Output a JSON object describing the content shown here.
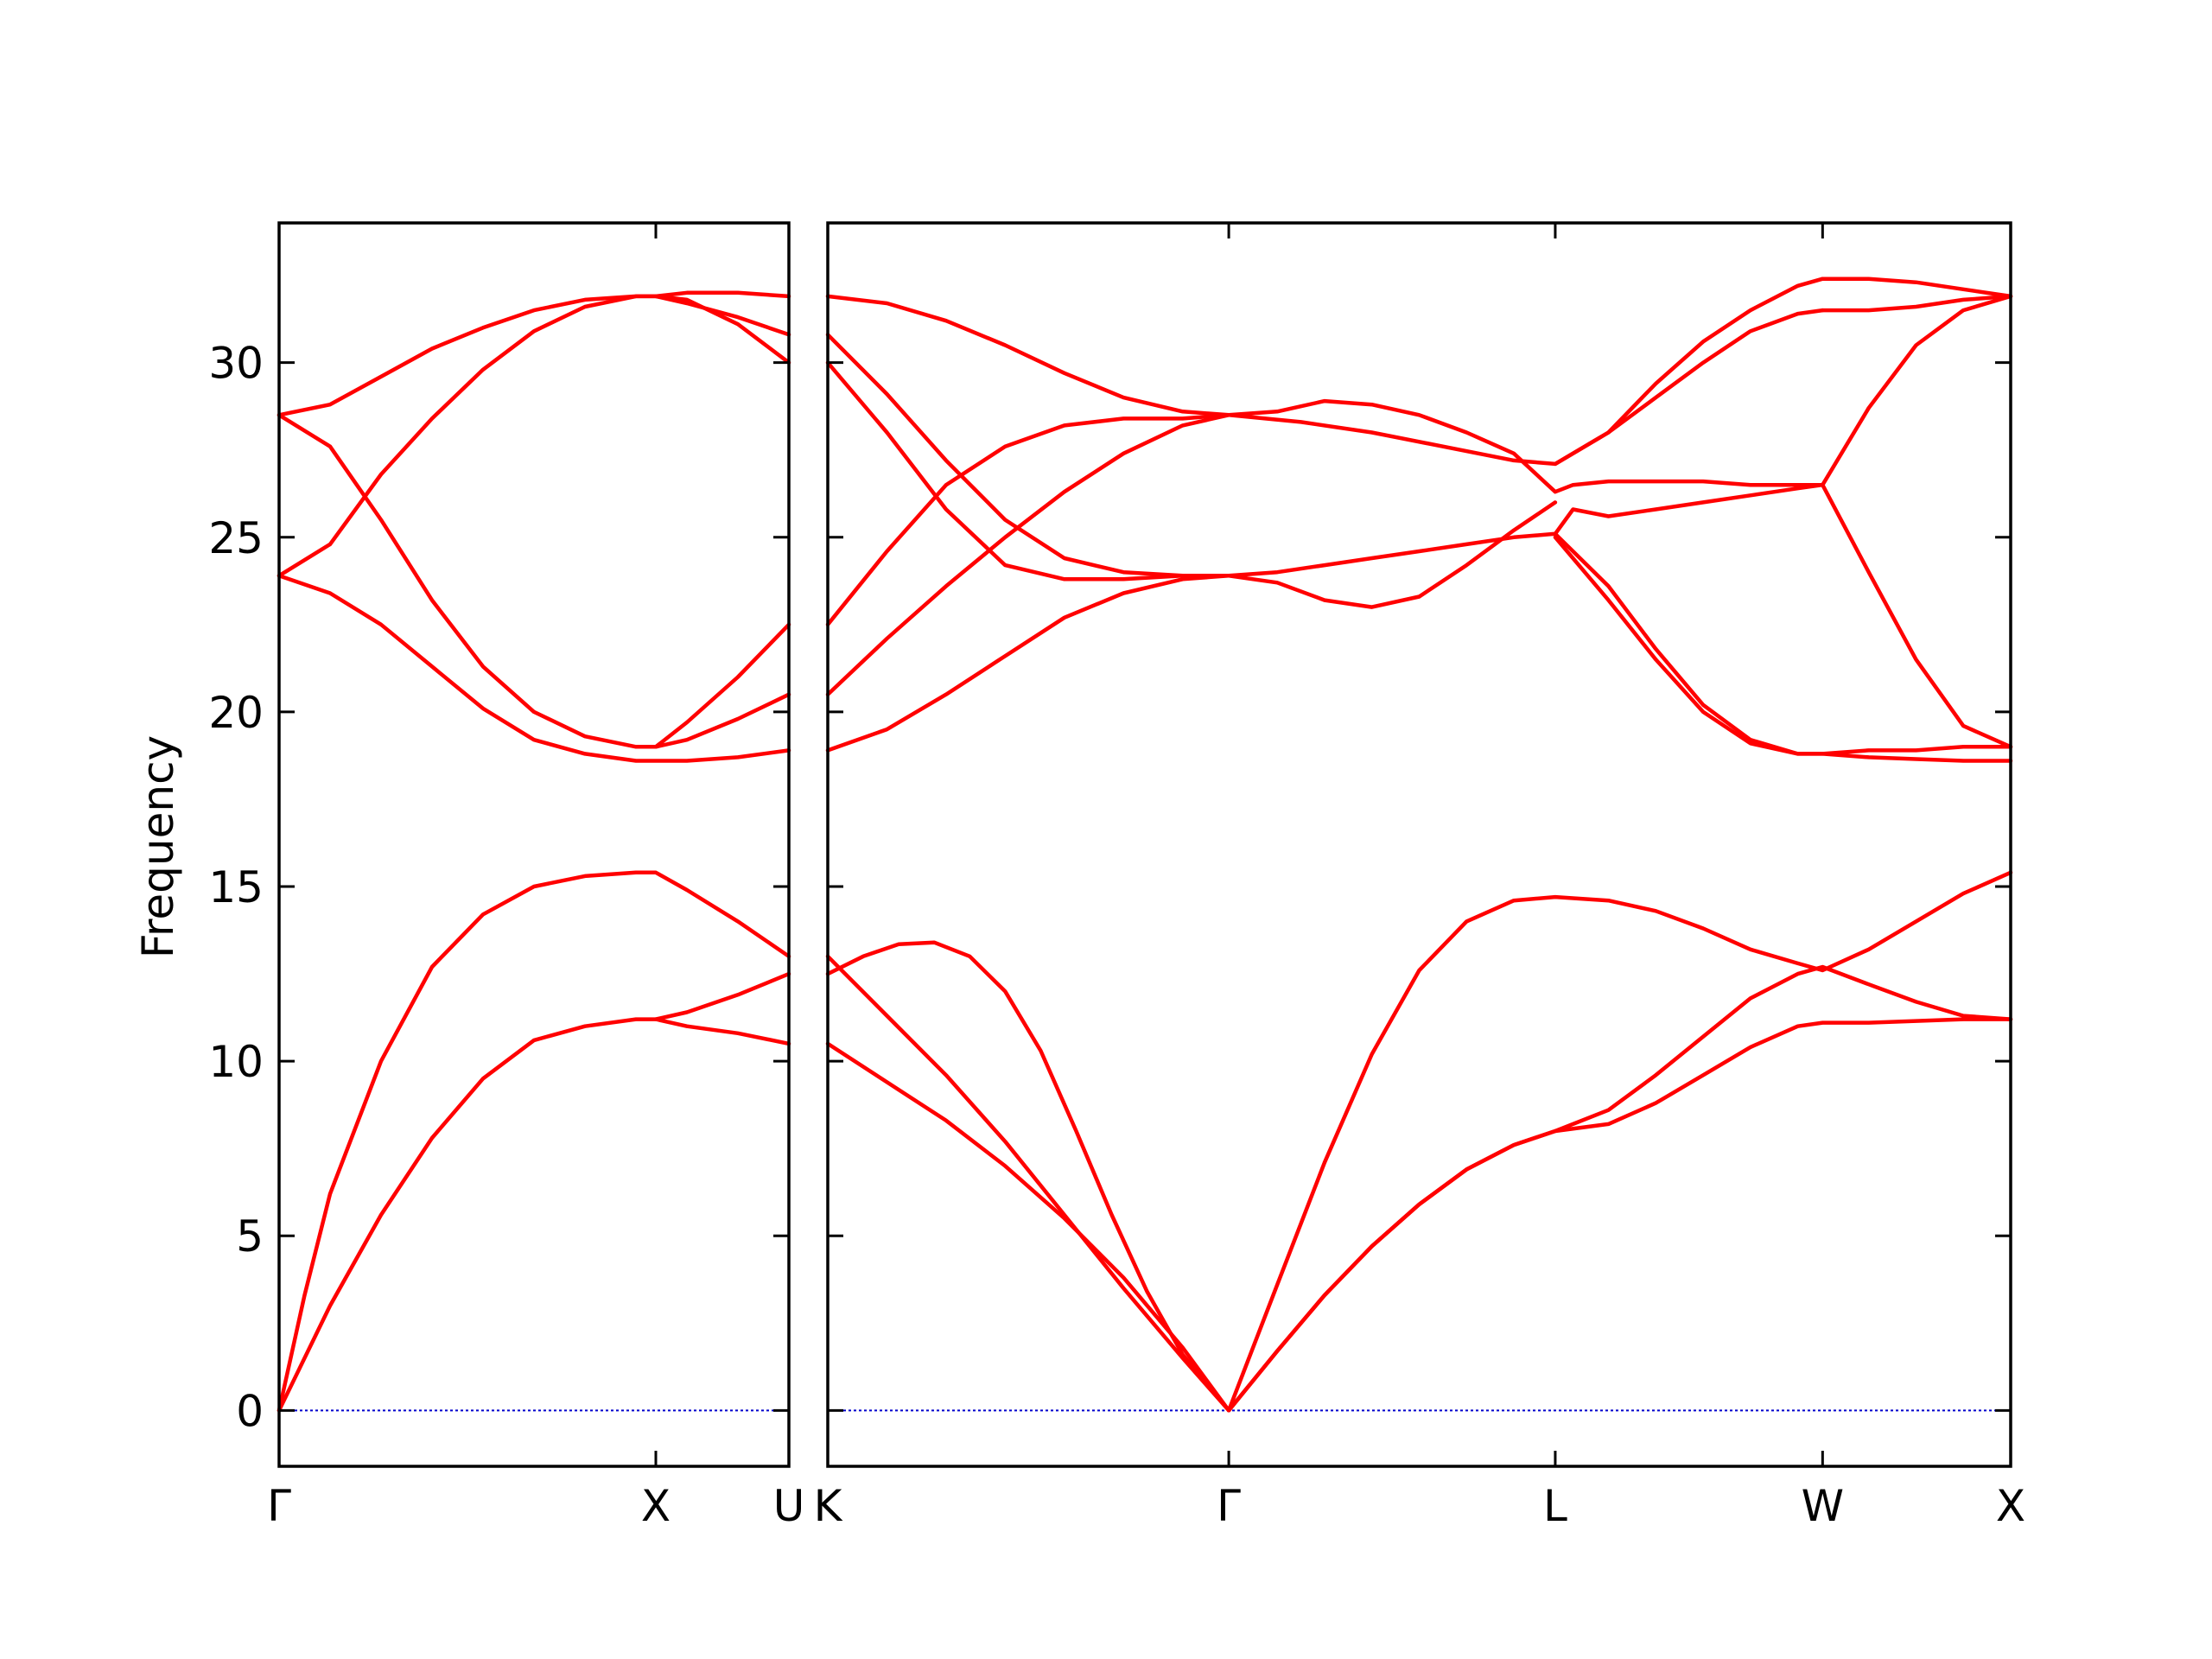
{
  "chart_data": {
    "type": "line",
    "title": "",
    "ylabel": "Frequency",
    "xlabel": "",
    "ylim": [
      -1.6,
      34
    ],
    "yticks": [
      0,
      5,
      10,
      15,
      20,
      25,
      30
    ],
    "grid": false,
    "legend": "none",
    "colors": {
      "bands": "#ff0000",
      "zero_line": "#0000cc",
      "axes": "#000000"
    },
    "panels": [
      {
        "name": "Γ-X-U",
        "xlim": [
          0,
          1.0
        ],
        "ticks": [
          {
            "x": 0.0,
            "label": "Γ"
          },
          {
            "x": 0.739,
            "label": "X"
          },
          {
            "x": 1.0,
            "label": "U"
          }
        ],
        "series": [
          {
            "x": [
              0,
              0.1,
              0.2,
              0.3,
              0.4,
              0.5,
              0.6,
              0.7,
              0.739,
              0.8,
              0.9,
              1.0
            ],
            "y": [
              0,
              3.0,
              5.6,
              7.8,
              9.5,
              10.6,
              11.0,
              11.2,
              11.2,
              11.0,
              10.8,
              10.5
            ]
          },
          {
            "x": [
              0,
              0.05,
              0.1,
              0.2,
              0.3,
              0.4,
              0.5,
              0.6,
              0.7,
              0.739,
              0.8,
              0.9,
              1.0
            ],
            "y": [
              0,
              3.3,
              6.2,
              10.0,
              12.7,
              14.2,
              15.0,
              15.3,
              15.4,
              15.4,
              14.9,
              14.0,
              13.0
            ]
          },
          {
            "x": [
              0.739,
              0.8,
              0.9,
              1.0
            ],
            "y": [
              11.2,
              11.4,
              11.9,
              12.5
            ]
          },
          {
            "x": [
              0,
              0.1,
              0.2,
              0.3,
              0.4,
              0.5,
              0.6,
              0.7,
              0.739,
              0.8,
              0.9,
              1.0
            ],
            "y": [
              23.9,
              23.4,
              22.5,
              21.3,
              20.1,
              19.2,
              18.8,
              18.6,
              18.6,
              18.6,
              18.7,
              18.9
            ]
          },
          {
            "x": [
              0,
              0.1,
              0.2,
              0.3,
              0.4,
              0.5,
              0.6,
              0.7,
              0.739,
              0.8,
              0.9,
              1.0
            ],
            "y": [
              28.5,
              27.6,
              25.5,
              23.2,
              21.3,
              20.0,
              19.3,
              19.0,
              19.0,
              19.2,
              19.8,
              20.5
            ]
          },
          {
            "x": [
              0.739,
              0.8,
              0.9,
              1.0
            ],
            "y": [
              19.0,
              19.7,
              21.0,
              22.5
            ]
          },
          {
            "x": [
              0,
              0.1,
              0.2,
              0.3,
              0.4,
              0.5,
              0.6,
              0.7,
              0.739,
              0.8,
              0.9,
              1.0
            ],
            "y": [
              23.9,
              24.8,
              26.8,
              28.4,
              29.8,
              30.9,
              31.6,
              31.9,
              31.9,
              31.8,
              31.1,
              30.0
            ]
          },
          {
            "x": [
              0,
              0.1,
              0.2,
              0.3,
              0.4,
              0.5,
              0.6,
              0.7,
              0.739,
              0.8,
              0.9,
              1.0
            ],
            "y": [
              28.5,
              28.8,
              29.6,
              30.4,
              31.0,
              31.5,
              31.8,
              31.9,
              31.9,
              31.7,
              31.3,
              30.8
            ]
          },
          {
            "x": [
              0.739,
              0.8,
              0.9,
              1.0
            ],
            "y": [
              31.9,
              32.0,
              32.0,
              31.9
            ]
          }
        ]
      },
      {
        "name": "K-Γ-L-W-X",
        "xlim": [
          0,
          1.0
        ],
        "ticks": [
          {
            "x": 0.0,
            "label": "K"
          },
          {
            "x": 0.339,
            "label": "Γ"
          },
          {
            "x": 0.615,
            "label": "L"
          },
          {
            "x": 0.841,
            "label": "W"
          },
          {
            "x": 1.0,
            "label": "X"
          }
        ],
        "series": [
          {
            "x": [
              0,
              0.05,
              0.1,
              0.15,
              0.2,
              0.25,
              0.3,
              0.339
            ],
            "y": [
              10.5,
              9.4,
              8.3,
              7.0,
              5.5,
              3.8,
              1.8,
              0
            ]
          },
          {
            "x": [
              0,
              0.05,
              0.1,
              0.15,
              0.2,
              0.25,
              0.3,
              0.339
            ],
            "y": [
              13.0,
              11.3,
              9.6,
              7.7,
              5.6,
              3.5,
              1.5,
              0
            ]
          },
          {
            "x": [
              0,
              0.03,
              0.06,
              0.09,
              0.12,
              0.15,
              0.18,
              0.21,
              0.24,
              0.27,
              0.3,
              0.339
            ],
            "y": [
              12.5,
              13.0,
              13.35,
              13.4,
              13.0,
              12.0,
              10.3,
              8.0,
              5.6,
              3.4,
              1.6,
              0
            ]
          },
          {
            "x": [
              0.339,
              0.38,
              0.42,
              0.46,
              0.5,
              0.54,
              0.58,
              0.615,
              0.66,
              0.7,
              0.74,
              0.78,
              0.82,
              0.841,
              0.88,
              0.92,
              0.96,
              1.0
            ],
            "y": [
              0,
              1.7,
              3.3,
              4.7,
              5.9,
              6.9,
              7.6,
              8.0,
              8.2,
              8.8,
              9.6,
              10.4,
              11.0,
              11.1,
              11.1,
              11.15,
              11.2,
              11.2
            ]
          },
          {
            "x": [
              0.339,
              0.38,
              0.42,
              0.46,
              0.5,
              0.54,
              0.58,
              0.615,
              0.66,
              0.7,
              0.74,
              0.78,
              0.82,
              0.841,
              0.88,
              0.92,
              0.96,
              1.0
            ],
            "y": [
              0,
              1.7,
              3.3,
              4.7,
              5.9,
              6.9,
              7.6,
              8.0,
              8.6,
              9.6,
              10.7,
              11.8,
              12.5,
              12.7,
              12.2,
              11.7,
              11.3,
              11.2
            ]
          },
          {
            "x": [
              0.339,
              0.38,
              0.42,
              0.46,
              0.5,
              0.54,
              0.58,
              0.615,
              0.66,
              0.7,
              0.74,
              0.78,
              0.82,
              0.841,
              0.88,
              0.92,
              0.96,
              1.0
            ],
            "y": [
              0,
              3.6,
              7.1,
              10.2,
              12.6,
              14.0,
              14.6,
              14.7,
              14.6,
              14.3,
              13.8,
              13.2,
              12.8,
              12.6,
              13.2,
              14.0,
              14.8,
              15.4
            ]
          },
          {
            "x": [
              0,
              0.05,
              0.1,
              0.15,
              0.2,
              0.25,
              0.3,
              0.339
            ],
            "y": [
              18.9,
              19.5,
              20.5,
              21.6,
              22.7,
              23.4,
              23.8,
              23.9
            ]
          },
          {
            "x": [
              0,
              0.05,
              0.1,
              0.15,
              0.2,
              0.25,
              0.3,
              0.339
            ],
            "y": [
              20.5,
              22.1,
              23.6,
              25.0,
              26.3,
              27.4,
              28.2,
              28.5
            ]
          },
          {
            "x": [
              0,
              0.05,
              0.1,
              0.15,
              0.2,
              0.25,
              0.3,
              0.339
            ],
            "y": [
              22.5,
              24.6,
              26.5,
              27.6,
              28.2,
              28.4,
              28.4,
              28.5
            ]
          },
          {
            "x": [
              0,
              0.05,
              0.1,
              0.15,
              0.2,
              0.25,
              0.3,
              0.339
            ],
            "y": [
              30.0,
              28.0,
              25.8,
              24.2,
              23.8,
              23.8,
              23.9,
              23.9
            ]
          },
          {
            "x": [
              0,
              0.05,
              0.1,
              0.15,
              0.2,
              0.25,
              0.3,
              0.339
            ],
            "y": [
              30.8,
              29.1,
              27.2,
              25.5,
              24.4,
              24.0,
              23.9,
              23.9
            ]
          },
          {
            "x": [
              0,
              0.05,
              0.1,
              0.15,
              0.2,
              0.25,
              0.3,
              0.339
            ],
            "y": [
              31.9,
              31.7,
              31.2,
              30.5,
              29.7,
              29.0,
              28.6,
              28.5
            ]
          },
          {
            "x": [
              0.339,
              0.38,
              0.42,
              0.46,
              0.5,
              0.54,
              0.58,
              0.615,
              0.63,
              0.66,
              0.7,
              0.74,
              0.78,
              0.82,
              0.841
            ],
            "y": [
              23.9,
              24.0,
              24.2,
              24.4,
              24.6,
              24.8,
              25.0,
              25.1,
              25.8,
              25.6,
              25.8,
              26.0,
              26.2,
              26.4,
              26.5
            ]
          },
          {
            "x": [
              0.339,
              0.38,
              0.42,
              0.46,
              0.5,
              0.54,
              0.58,
              0.615,
              0.63,
              0.66,
              0.7,
              0.74,
              0.78,
              0.82,
              0.841
            ],
            "y": [
              28.5,
              28.6,
              28.9,
              28.8,
              28.5,
              28.0,
              27.4,
              26.3,
              26.5,
              26.6,
              26.6,
              26.6,
              26.5,
              26.5,
              26.5
            ]
          },
          {
            "x": [
              0.339,
              0.38,
              0.42,
              0.46,
              0.5,
              0.54,
              0.58,
              0.615
            ],
            "y": [
              23.9,
              23.7,
              23.2,
              23.0,
              23.3,
              24.2,
              25.2,
              26.0
            ]
          },
          {
            "x": [
              0.339,
              0.4,
              0.46,
              0.52,
              0.58,
              0.615,
              0.66,
              0.7,
              0.74,
              0.78,
              0.82,
              0.841
            ],
            "y": [
              28.5,
              28.3,
              28.0,
              27.6,
              27.2,
              27.1,
              28.0,
              29.4,
              30.6,
              31.5,
              32.2,
              32.4
            ]
          },
          {
            "x": [
              0.615,
              0.66,
              0.7,
              0.74,
              0.78,
              0.82,
              0.841,
              0.88,
              0.92,
              0.96,
              1.0
            ],
            "y": [
              25.0,
              23.2,
              21.5,
              20.0,
              19.1,
              18.8,
              18.8,
              18.9,
              18.9,
              19.0,
              19.0
            ]
          },
          {
            "x": [
              0.615,
              0.66,
              0.7,
              0.74,
              0.78,
              0.82,
              0.841,
              0.88,
              0.92,
              0.96,
              1.0
            ],
            "y": [
              25.1,
              23.6,
              21.8,
              20.2,
              19.2,
              18.8,
              18.8,
              18.7,
              18.65,
              18.6,
              18.6
            ]
          },
          {
            "x": [
              0.615,
              0.66,
              0.7,
              0.74,
              0.78,
              0.82,
              0.841
            ],
            "y": [
              27.1,
              28.0,
              29.0,
              30.0,
              30.9,
              31.4,
              31.5
            ]
          },
          {
            "x": [
              0.841,
              0.88,
              0.92,
              0.96,
              1.0
            ],
            "y": [
              32.4,
              32.4,
              32.3,
              32.1,
              31.9
            ]
          },
          {
            "x": [
              0.841,
              0.88,
              0.92,
              0.96,
              1.0
            ],
            "y": [
              31.5,
              31.5,
              31.6,
              31.8,
              31.9
            ]
          },
          {
            "x": [
              0.841,
              0.88,
              0.92,
              0.96,
              1.0
            ],
            "y": [
              26.5,
              28.7,
              30.5,
              31.5,
              31.9
            ]
          },
          {
            "x": [
              0.841,
              0.88,
              0.92,
              0.96,
              1.0
            ],
            "y": [
              26.5,
              24.0,
              21.5,
              19.6,
              19.0
            ]
          }
        ]
      }
    ]
  }
}
